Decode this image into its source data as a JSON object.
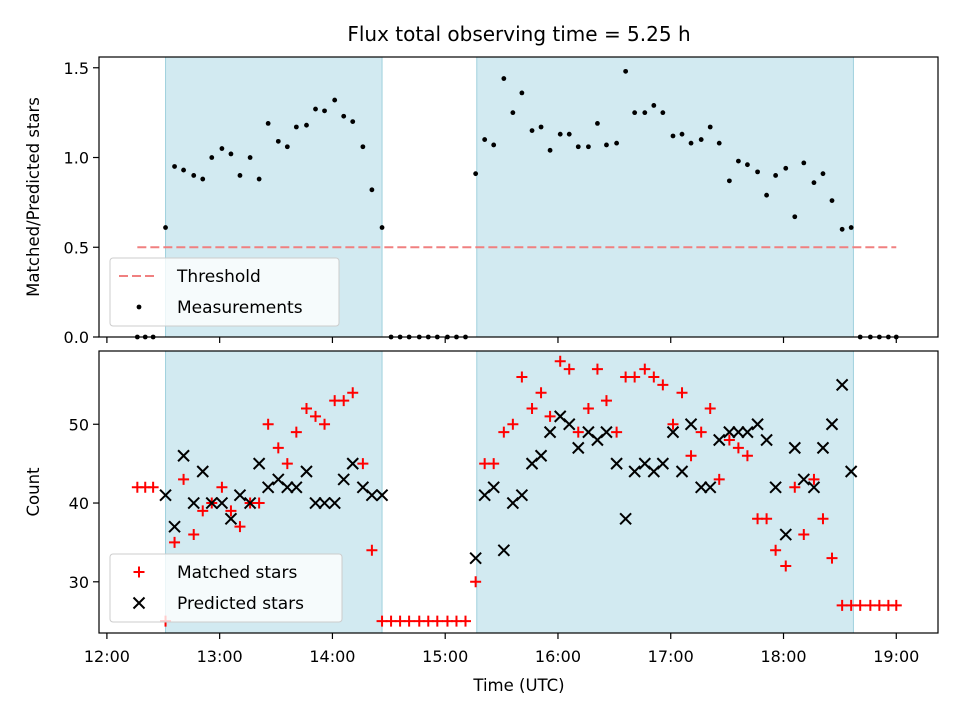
{
  "chart_data": {
    "title": "Flux total observing time = 5.25 h",
    "xlabel": "Time (UTC)",
    "x_tick_labels": [
      "12:00",
      "13:00",
      "14:00",
      "15:00",
      "16:00",
      "17:00",
      "18:00",
      "19:00"
    ],
    "x_ticks_hours": [
      12,
      13,
      14,
      15,
      16,
      17,
      18,
      19
    ],
    "xlim_hours": [
      11.93,
      19.37
    ],
    "shaded_intervals_hours": [
      [
        12.52,
        14.44
      ],
      [
        15.28,
        18.62
      ]
    ],
    "shade_color": "#add8e6",
    "panels": [
      {
        "id": "ratio",
        "type": "scatter",
        "ylabel": "Matched/Predicted stars",
        "ylim": [
          0,
          1.56
        ],
        "y_ticks": [
          0.0,
          0.5,
          1.0,
          1.5
        ],
        "y_tick_labels": [
          "0.0",
          "0.5",
          "1.0",
          "1.5"
        ],
        "legend": {
          "placement": "lower-left",
          "entries": [
            "Threshold",
            "Measurements"
          ]
        },
        "threshold": {
          "name": "Threshold",
          "value": 0.5,
          "x_range_hours": [
            12.27,
            19.0
          ],
          "color": "#f08080",
          "style": "dashed"
        },
        "series": [
          {
            "name": "Measurements",
            "marker": "dot",
            "color": "#000000",
            "x": [
              12.27,
              12.34,
              12.41,
              12.52,
              12.6,
              12.68,
              12.77,
              12.85,
              12.93,
              13.02,
              13.1,
              13.18,
              13.27,
              13.35,
              13.43,
              13.52,
              13.6,
              13.68,
              13.77,
              13.85,
              13.93,
              14.02,
              14.1,
              14.18,
              14.27,
              14.35,
              14.44,
              14.52,
              14.6,
              14.68,
              14.77,
              14.85,
              14.93,
              15.02,
              15.1,
              15.18,
              15.27,
              15.35,
              15.43,
              15.52,
              15.6,
              15.68,
              15.77,
              15.85,
              15.93,
              16.02,
              16.1,
              16.18,
              16.27,
              16.35,
              16.43,
              16.52,
              16.6,
              16.68,
              16.77,
              16.85,
              16.93,
              17.02,
              17.1,
              17.18,
              17.27,
              17.35,
              17.43,
              17.52,
              17.6,
              17.68,
              17.77,
              17.85,
              17.93,
              18.02,
              18.1,
              18.18,
              18.27,
              18.35,
              18.43,
              18.52,
              18.6,
              18.68,
              18.77,
              18.85,
              18.93,
              19.0
            ],
            "y": [
              0,
              0,
              0,
              0.61,
              0.95,
              0.93,
              0.9,
              0.88,
              1.0,
              1.05,
              1.02,
              0.9,
              1.0,
              0.88,
              1.19,
              1.09,
              1.06,
              1.17,
              1.18,
              1.27,
              1.26,
              1.32,
              1.23,
              1.2,
              1.06,
              0.82,
              0.61,
              0,
              0,
              0,
              0,
              0,
              0,
              0,
              0,
              0,
              0.91,
              1.1,
              1.07,
              1.44,
              1.25,
              1.36,
              1.15,
              1.17,
              1.04,
              1.13,
              1.13,
              1.06,
              1.06,
              1.19,
              1.07,
              1.08,
              1.48,
              1.25,
              1.25,
              1.29,
              1.25,
              1.12,
              1.13,
              1.08,
              1.1,
              1.17,
              1.08,
              0.87,
              0.98,
              0.96,
              0.92,
              0.79,
              0.9,
              0.94,
              0.67,
              0.97,
              0.86,
              0.91,
              0.76,
              0.6,
              0.61,
              0,
              0,
              0,
              0,
              0
            ]
          }
        ]
      },
      {
        "id": "counts",
        "type": "scatter",
        "ylabel": "Count",
        "ylim": [
          23.5,
          59.3
        ],
        "y_ticks": [
          30,
          40,
          50
        ],
        "y_tick_labels": [
          "30",
          "40",
          "50"
        ],
        "legend": {
          "placement": "lower-left",
          "entries": [
            "Matched stars",
            "Predicted stars"
          ]
        },
        "series": [
          {
            "name": "Matched stars",
            "marker": "plus",
            "color": "#ff0000",
            "x": [
              12.27,
              12.34,
              12.41,
              12.52,
              12.6,
              12.68,
              12.77,
              12.85,
              12.93,
              13.02,
              13.1,
              13.18,
              13.27,
              13.35,
              13.43,
              13.52,
              13.6,
              13.68,
              13.77,
              13.85,
              13.93,
              14.02,
              14.1,
              14.18,
              14.27,
              14.35,
              14.44,
              14.52,
              14.6,
              14.68,
              14.77,
              14.85,
              14.93,
              15.02,
              15.1,
              15.18,
              15.27,
              15.35,
              15.43,
              15.52,
              15.6,
              15.68,
              15.77,
              15.85,
              15.93,
              16.02,
              16.1,
              16.18,
              16.27,
              16.35,
              16.43,
              16.52,
              16.6,
              16.68,
              16.77,
              16.85,
              16.93,
              17.02,
              17.1,
              17.18,
              17.27,
              17.35,
              17.43,
              17.52,
              17.6,
              17.68,
              17.77,
              17.85,
              17.93,
              18.02,
              18.1,
              18.18,
              18.27,
              18.35,
              18.43,
              18.52,
              18.6,
              18.68,
              18.77,
              18.85,
              18.93,
              19.0
            ],
            "y": [
              42,
              42,
              42,
              25,
              35,
              43,
              36,
              39,
              40,
              42,
              39,
              37,
              40,
              40,
              50,
              47,
              45,
              49,
              52,
              51,
              50,
              53,
              53,
              54,
              45,
              34,
              25,
              25,
              25,
              25,
              25,
              25,
              25,
              25,
              25,
              25,
              30,
              45,
              45,
              49,
              50,
              56,
              52,
              54,
              51,
              58,
              57,
              49,
              52,
              57,
              53,
              49,
              56,
              56,
              57,
              56,
              55,
              50,
              54,
              46,
              49,
              52,
              43,
              48,
              47,
              46,
              38,
              38,
              34,
              32,
              42,
              36,
              43,
              38,
              33,
              27,
              27,
              27,
              27,
              27,
              27,
              27
            ]
          },
          {
            "name": "Predicted stars",
            "marker": "x",
            "color": "#000000",
            "x": [
              12.52,
              12.6,
              12.68,
              12.77,
              12.85,
              12.93,
              13.02,
              13.1,
              13.18,
              13.27,
              13.35,
              13.43,
              13.52,
              13.6,
              13.68,
              13.77,
              13.85,
              13.93,
              14.02,
              14.1,
              14.18,
              14.27,
              14.35,
              14.44,
              15.27,
              15.35,
              15.43,
              15.52,
              15.6,
              15.68,
              15.77,
              15.85,
              15.93,
              16.02,
              16.1,
              16.18,
              16.27,
              16.35,
              16.43,
              16.52,
              16.6,
              16.68,
              16.77,
              16.85,
              16.93,
              17.02,
              17.1,
              17.18,
              17.27,
              17.35,
              17.43,
              17.52,
              17.6,
              17.68,
              17.77,
              17.85,
              17.93,
              18.02,
              18.1,
              18.18,
              18.27,
              18.35,
              18.43,
              18.52,
              18.6
            ],
            "y": [
              41,
              37,
              46,
              40,
              44,
              40,
              40,
              38,
              41,
              40,
              45,
              42,
              43,
              42,
              42,
              44,
              40,
              40,
              40,
              43,
              45,
              42,
              41,
              41,
              33,
              41,
              42,
              34,
              40,
              41,
              45,
              46,
              49,
              51,
              50,
              47,
              49,
              48,
              49,
              45,
              38,
              44,
              45,
              44,
              45,
              49,
              44,
              50,
              42,
              42,
              48,
              49,
              49,
              49,
              50,
              48,
              42,
              36,
              47,
              43,
              42,
              47,
              50,
              55,
              44
            ]
          }
        ]
      }
    ]
  }
}
